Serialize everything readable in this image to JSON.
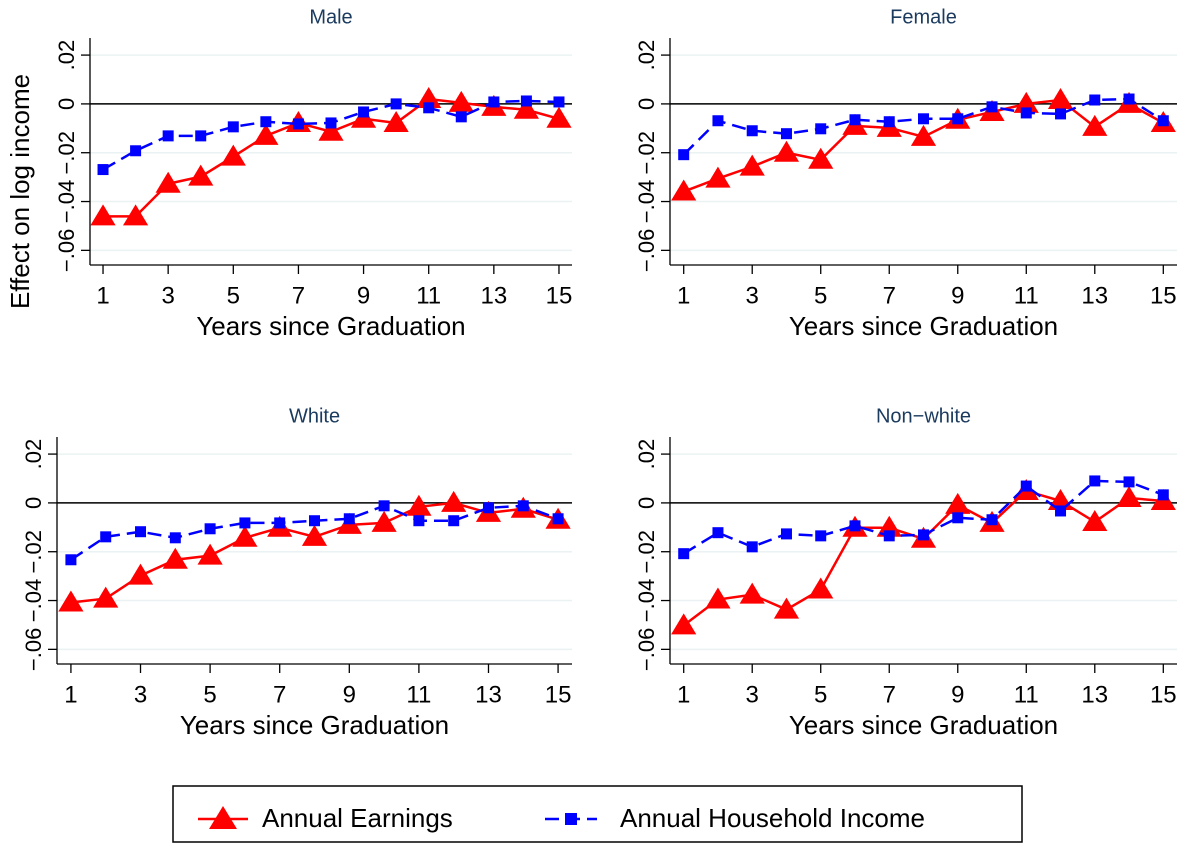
{
  "chart_data": [
    {
      "type": "line",
      "title": "Male",
      "xlabel": "Years since Graduation",
      "ylabel": "Effect on log income",
      "x": [
        1,
        2,
        3,
        4,
        5,
        6,
        7,
        8,
        9,
        10,
        11,
        12,
        13,
        14,
        15
      ],
      "series": [
        {
          "name": "Annual Earnings",
          "color": "#ff0000",
          "marker": "triangle",
          "dashed": false,
          "values": [
            -0.0461,
            -0.0461,
            -0.0327,
            -0.0298,
            -0.0216,
            -0.0131,
            -0.0078,
            -0.0114,
            -0.0061,
            -0.0078,
            0.002,
            0.0004,
            -0.0012,
            -0.0024,
            -0.0061
          ]
        },
        {
          "name": "Annual Household Income",
          "color": "#0000ff",
          "marker": "square",
          "dashed": true,
          "values": [
            -0.0269,
            -0.0192,
            -0.0131,
            -0.0131,
            -0.0094,
            -0.0073,
            -0.0082,
            -0.0078,
            -0.0033,
            0,
            -0.0016,
            -0.0053,
            0.0008,
            0.0012,
            0.0008
          ]
        }
      ],
      "xlim": [
        0.6,
        15.4
      ],
      "xticks": [
        1,
        3,
        5,
        7,
        9,
        11,
        13,
        15
      ],
      "ylim": [
        -0.066,
        0.027
      ],
      "yticks": [
        {
          "value": -0.06,
          "label": "−.06"
        },
        {
          "value": -0.04,
          "label": "−.04"
        },
        {
          "value": -0.02,
          "label": "−.02"
        },
        0,
        {
          "value": 0.02,
          "label": ".02"
        }
      ],
      "yline": 0,
      "grid": true
    },
    {
      "type": "line",
      "title": "Female",
      "xlabel": "Years since Graduation",
      "x": [
        1,
        2,
        3,
        4,
        5,
        6,
        7,
        8,
        9,
        10,
        11,
        12,
        13,
        14,
        15
      ],
      "series": [
        {
          "color": "#ff0000",
          "marker": "triangle",
          "dashed": false,
          "values": [
            -0.0359,
            -0.0306,
            -0.0257,
            -0.02,
            -0.0229,
            -0.009,
            -0.0098,
            -0.0135,
            -0.0065,
            -0.0033,
            0,
            0.0016,
            -0.0094,
            0,
            -0.0078
          ]
        },
        {
          "color": "#0000ff",
          "marker": "square",
          "dashed": true,
          "values": [
            -0.0208,
            -0.0069,
            -0.011,
            -0.0122,
            -0.0102,
            -0.0065,
            -0.0073,
            -0.0061,
            -0.0061,
            -0.0012,
            -0.0037,
            -0.0041,
            0.0016,
            0.002,
            -0.0069
          ]
        }
      ],
      "xlim": [
        0.6,
        15.4
      ],
      "xticks": [
        1,
        3,
        5,
        7,
        9,
        11,
        13,
        15
      ],
      "ylim": [
        -0.066,
        0.027
      ],
      "yticks": [
        {
          "value": -0.06,
          "label": "−.06"
        },
        {
          "value": -0.04,
          "label": "−.04"
        },
        {
          "value": -0.02,
          "label": "−.02"
        },
        0,
        {
          "value": 0.02,
          "label": ".02"
        }
      ],
      "yline": 0,
      "grid": true
    },
    {
      "type": "line",
      "title": "White",
      "xlabel": "Years since Graduation",
      "x": [
        1,
        2,
        3,
        4,
        5,
        6,
        7,
        8,
        9,
        10,
        11,
        12,
        13,
        14,
        15
      ],
      "series": [
        {
          "color": "#ff0000",
          "marker": "triangle",
          "dashed": false,
          "values": [
            -0.0408,
            -0.0392,
            -0.0298,
            -0.0233,
            -0.0216,
            -0.0143,
            -0.0102,
            -0.0139,
            -0.009,
            -0.0082,
            -0.0016,
            0,
            -0.0041,
            -0.0024,
            -0.0069
          ]
        },
        {
          "color": "#0000ff",
          "marker": "square",
          "dashed": true,
          "values": [
            -0.0233,
            -0.0139,
            -0.0118,
            -0.0143,
            -0.0106,
            -0.0082,
            -0.0082,
            -0.0073,
            -0.0065,
            -0.0012,
            -0.0073,
            -0.0073,
            -0.002,
            -0.0012,
            -0.0065
          ]
        }
      ],
      "xlim": [
        0.6,
        15.4
      ],
      "xticks": [
        1,
        3,
        5,
        7,
        9,
        11,
        13,
        15
      ],
      "ylim": [
        -0.066,
        0.027
      ],
      "yticks": [
        {
          "value": -0.06,
          "label": "−.06"
        },
        {
          "value": -0.04,
          "label": "−.04"
        },
        {
          "value": -0.02,
          "label": "−.02"
        },
        0,
        {
          "value": 0.02,
          "label": ".02"
        }
      ],
      "yline": 0,
      "grid": true
    },
    {
      "type": "line",
      "title": "Non−white",
      "xlabel": "Years since Graduation",
      "x": [
        1,
        2,
        3,
        4,
        5,
        6,
        7,
        8,
        9,
        10,
        11,
        12,
        13,
        14,
        15
      ],
      "series": [
        {
          "color": "#ff0000",
          "marker": "triangle",
          "dashed": false,
          "values": [
            -0.0502,
            -0.0396,
            -0.0376,
            -0.0437,
            -0.0355,
            -0.0102,
            -0.0102,
            -0.0147,
            -0.0008,
            -0.0082,
            0.0049,
            0.0008,
            -0.0078,
            0.002,
            0.0008
          ]
        },
        {
          "color": "#0000ff",
          "marker": "square",
          "dashed": true,
          "values": [
            -0.0208,
            -0.0122,
            -0.018,
            -0.0127,
            -0.0135,
            -0.0094,
            -0.0135,
            -0.0131,
            -0.0061,
            -0.0069,
            0.0069,
            -0.0033,
            0.009,
            0.0086,
            0.0033
          ]
        }
      ],
      "xlim": [
        0.6,
        15.4
      ],
      "xticks": [
        1,
        3,
        5,
        7,
        9,
        11,
        13,
        15
      ],
      "ylim": [
        -0.066,
        0.027
      ],
      "yticks": [
        {
          "value": -0.06,
          "label": "−.06"
        },
        {
          "value": -0.04,
          "label": "−.04"
        },
        {
          "value": -0.02,
          "label": "−.02"
        },
        0,
        {
          "value": 0.02,
          "label": ".02"
        }
      ],
      "yline": 0,
      "grid": true
    }
  ]
}
